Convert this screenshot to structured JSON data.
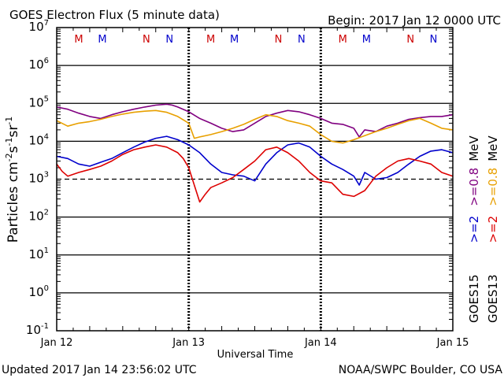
{
  "header": {
    "title": "GOES Electron Flux (5 minute data)",
    "begin": "Begin: 2017 Jan 12 0000 UTC"
  },
  "footer": {
    "updated": "Updated 2017 Jan 14 23:56:02 UTC",
    "source": "NOAA/SWPC Boulder, CO USA"
  },
  "chart_data": {
    "type": "line",
    "title": "GOES Electron Flux (5 minute data)",
    "xlabel": "Universal Time",
    "ylabel_parts": [
      "Particles cm",
      "-2",
      "s",
      "-1",
      "sr",
      "-1"
    ],
    "y_scale": "log",
    "ylim": [
      0.1,
      10000000
    ],
    "y_ticks": [
      {
        "value": 10000000,
        "base": "10",
        "exp": "7"
      },
      {
        "value": 1000000,
        "base": "10",
        "exp": "6"
      },
      {
        "value": 100000,
        "base": "10",
        "exp": "5"
      },
      {
        "value": 10000,
        "base": "10",
        "exp": "4"
      },
      {
        "value": 1000,
        "base": "10",
        "exp": "3"
      },
      {
        "value": 100,
        "base": "10",
        "exp": "2"
      },
      {
        "value": 10,
        "base": "10",
        "exp": "1"
      },
      {
        "value": 1,
        "base": "10",
        "exp": "0"
      },
      {
        "value": 0.1,
        "base": "10",
        "exp": "-1"
      }
    ],
    "xlim": [
      0,
      72
    ],
    "x_ticks": [
      {
        "hour": 0,
        "label": "Jan 12"
      },
      {
        "hour": 24,
        "label": "Jan 13"
      },
      {
        "hour": 48,
        "label": "Jan 14"
      },
      {
        "hour": 72,
        "label": "Jan 15"
      }
    ],
    "threshold_line": 1000,
    "grid": "decades",
    "markers": [
      {
        "hour": 4.0,
        "letter": "M",
        "color": "#cc0000"
      },
      {
        "hour": 8.3,
        "letter": "M",
        "color": "#0000cc"
      },
      {
        "hour": 16.3,
        "letter": "N",
        "color": "#cc0000"
      },
      {
        "hour": 20.5,
        "letter": "N",
        "color": "#0000cc"
      },
      {
        "hour": 28.0,
        "letter": "M",
        "color": "#cc0000"
      },
      {
        "hour": 32.3,
        "letter": "M",
        "color": "#0000cc"
      },
      {
        "hour": 40.3,
        "letter": "N",
        "color": "#cc0000"
      },
      {
        "hour": 44.5,
        "letter": "N",
        "color": "#0000cc"
      },
      {
        "hour": 52.0,
        "letter": "M",
        "color": "#cc0000"
      },
      {
        "hour": 56.3,
        "letter": "M",
        "color": "#0000cc"
      },
      {
        "hour": 64.3,
        "letter": "N",
        "color": "#cc0000"
      },
      {
        "hour": 68.5,
        "letter": "N",
        "color": "#0000cc"
      }
    ],
    "legend": {
      "placement": "right",
      "columns": [
        {
          "satellite": "GOES15",
          "entries": [
            {
              "text": ">=2",
              "color": "#0000cc"
            },
            {
              "text": ">=0.8",
              "color": "#800080"
            }
          ]
        },
        {
          "satellite": "GOES13",
          "entries": [
            {
              "text": ">=2",
              "color": "#cc0000"
            },
            {
              "text": ">=0.8",
              "color": "#e8a000"
            }
          ]
        }
      ],
      "unit": "MeV"
    },
    "series": [
      {
        "key": "g15_08",
        "color": "#800080",
        "x": [
          0,
          2,
          4,
          6,
          8,
          10,
          12,
          14,
          16,
          18,
          20,
          21,
          22,
          24,
          26,
          28,
          30,
          32,
          34,
          36,
          38,
          40,
          42,
          44,
          46,
          48,
          50,
          52,
          54,
          55,
          56,
          58,
          60,
          62,
          64,
          66,
          68,
          70,
          72
        ],
        "y": [
          80000,
          70000,
          55000,
          45000,
          40000,
          50000,
          60000,
          70000,
          80000,
          90000,
          95000,
          90000,
          80000,
          60000,
          40000,
          30000,
          22000,
          18000,
          20000,
          30000,
          45000,
          55000,
          65000,
          60000,
          50000,
          40000,
          30000,
          28000,
          22000,
          13000,
          20000,
          18000,
          25000,
          30000,
          38000,
          42000,
          45000,
          45000,
          50000
        ]
      },
      {
        "key": "g13_08",
        "color": "#e8a000",
        "x": [
          0,
          2,
          4,
          6,
          8,
          10,
          12,
          14,
          16,
          18,
          20,
          22,
          24,
          25,
          26,
          28,
          30,
          32,
          34,
          36,
          38,
          40,
          42,
          44,
          46,
          48,
          50,
          52,
          54,
          56,
          58,
          60,
          62,
          64,
          66,
          68,
          70,
          72
        ],
        "y": [
          35000,
          25000,
          30000,
          33000,
          38000,
          45000,
          52000,
          58000,
          62000,
          65000,
          58000,
          45000,
          30000,
          12000,
          13000,
          15000,
          18000,
          22000,
          28000,
          38000,
          50000,
          45000,
          35000,
          30000,
          25000,
          15000,
          10000,
          9000,
          11000,
          14000,
          18000,
          22000,
          28000,
          35000,
          40000,
          30000,
          22000,
          20000
        ]
      },
      {
        "key": "g15_2",
        "color": "#0000cc",
        "x": [
          0,
          2,
          4,
          6,
          8,
          10,
          12,
          14,
          16,
          18,
          20,
          22,
          24,
          26,
          28,
          30,
          32,
          34,
          36,
          38,
          40,
          42,
          44,
          46,
          48,
          50,
          52,
          54,
          55,
          56,
          58,
          60,
          62,
          64,
          66,
          68,
          70,
          72
        ],
        "y": [
          4000,
          3500,
          2500,
          2200,
          2800,
          3500,
          5000,
          7000,
          9500,
          12000,
          13500,
          11000,
          8000,
          5000,
          2500,
          1500,
          1300,
          1200,
          900,
          2500,
          5000,
          8000,
          9000,
          7000,
          4000,
          2500,
          1800,
          1200,
          700,
          1500,
          1000,
          1100,
          1500,
          2500,
          4000,
          5500,
          6000,
          5000
        ]
      },
      {
        "key": "g13_2",
        "color": "#dd0000",
        "x": [
          0,
          1,
          2,
          4,
          6,
          8,
          10,
          12,
          14,
          16,
          18,
          20,
          22,
          23,
          24,
          25,
          26,
          27,
          28,
          30,
          32,
          34,
          36,
          38,
          40,
          42,
          44,
          46,
          48,
          50,
          52,
          54,
          56,
          58,
          60,
          62,
          64,
          66,
          68,
          70,
          72
        ],
        "y": [
          2500,
          1600,
          1200,
          1500,
          1800,
          2200,
          3000,
          4500,
          6000,
          7000,
          8000,
          7000,
          5000,
          3500,
          2000,
          700,
          250,
          400,
          600,
          800,
          1100,
          1800,
          3000,
          6000,
          7000,
          5000,
          3000,
          1500,
          900,
          800,
          400,
          350,
          500,
          1200,
          2000,
          3000,
          3500,
          3000,
          2500,
          1500,
          1200
        ]
      }
    ]
  }
}
